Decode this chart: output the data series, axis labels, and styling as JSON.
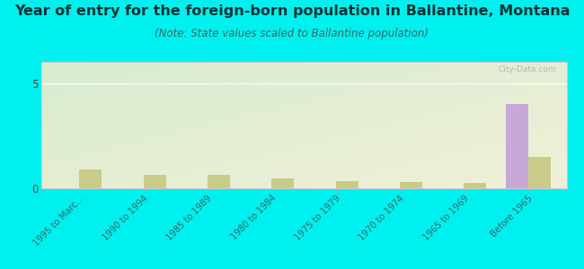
{
  "title": "Year of entry for the foreign-born population in Ballantine, Montana",
  "subtitle": "(Note: State values scaled to Ballantine population)",
  "categories": [
    "1995 to Marc...",
    "1990 to 1994",
    "1985 to 1989",
    "1980 to 1984",
    "1975 to 1979",
    "1970 to 1974",
    "1965 to 1969",
    "Before 1965"
  ],
  "ballantine_values": [
    0,
    0,
    0,
    0,
    0,
    0,
    0,
    4.0
  ],
  "montana_values": [
    0.9,
    0.65,
    0.65,
    0.45,
    0.35,
    0.28,
    0.25,
    1.5
  ],
  "ballantine_color": "#c8a8d8",
  "montana_color": "#c8cc88",
  "background_color": "#00f0f0",
  "plot_bg_topleft": "#d8ecd0",
  "plot_bg_bottomright": "#eeeedd",
  "ylim": [
    0,
    6
  ],
  "yticks": [
    0,
    5
  ],
  "bar_width": 0.35,
  "watermark": "City-Data.com",
  "title_fontsize": 11.5,
  "subtitle_fontsize": 8.5,
  "title_color": "#003333",
  "subtitle_color": "#336666"
}
